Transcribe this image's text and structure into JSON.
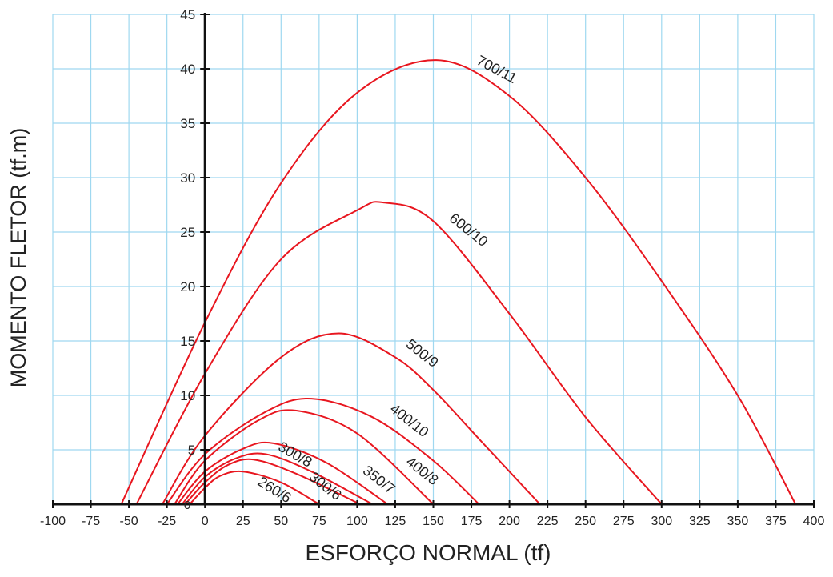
{
  "chart_data": {
    "type": "line",
    "title": "",
    "xlabel": "ESFORÇO NORMAL (tf)",
    "ylabel": "MOMENTO FLETOR (tf.m)",
    "xlim": [
      -100,
      400
    ],
    "ylim": [
      0,
      45
    ],
    "x_ticks": [
      -100,
      -75,
      -50,
      -25,
      0,
      25,
      50,
      75,
      100,
      125,
      150,
      175,
      200,
      225,
      250,
      275,
      300,
      325,
      350,
      375,
      400
    ],
    "y_ticks": [
      5,
      10,
      15,
      20,
      25,
      30,
      35,
      40,
      45
    ],
    "y_zero_label": "0",
    "grid": true,
    "grid_color": "#9fd8f0",
    "line_color": "#e8161f",
    "axis_color": "#111111",
    "series": [
      {
        "name": "700/11",
        "x": [
          -55,
          0,
          50,
          100,
          152,
          200,
          250,
          300,
          350,
          388
        ],
        "y": [
          0,
          16.7,
          29.5,
          37.8,
          40.8,
          37.5,
          30.0,
          20.5,
          10.0,
          0
        ]
      },
      {
        "name": "600/10",
        "x": [
          -45,
          0,
          50,
          100,
          118,
          150,
          200,
          250,
          300
        ],
        "y": [
          0,
          12.0,
          22.5,
          27.0,
          27.7,
          26.0,
          17.5,
          8.0,
          0
        ]
      },
      {
        "name": "500/9",
        "x": [
          -28,
          0,
          50,
          88,
          125,
          150,
          180,
          220
        ],
        "y": [
          0,
          6.3,
          13.5,
          15.7,
          13.5,
          10.5,
          6.0,
          0
        ]
      },
      {
        "name": "400/10",
        "x": [
          -25,
          0,
          40,
          70,
          110,
          150,
          180
        ],
        "y": [
          0,
          4.6,
          8.5,
          9.7,
          8.0,
          4.0,
          0
        ]
      },
      {
        "name": "400/8",
        "x": [
          -20,
          0,
          35,
          60,
          100,
          150
        ],
        "y": [
          0,
          4.0,
          7.7,
          8.6,
          6.5,
          0
        ]
      },
      {
        "name": "350/7",
        "x": [
          -18,
          0,
          25,
          45,
          80,
          120
        ],
        "y": [
          0,
          3.0,
          5.1,
          5.6,
          3.8,
          0
        ]
      },
      {
        "name": "300/8",
        "x": [
          -15,
          0,
          20,
          40,
          70,
          110
        ],
        "y": [
          0,
          2.5,
          4.2,
          4.6,
          3.0,
          0
        ]
      },
      {
        "name": "300/6",
        "x": [
          -13,
          0,
          15,
          32,
          60,
          102
        ],
        "y": [
          0,
          2.0,
          3.6,
          4.1,
          2.8,
          0
        ]
      },
      {
        "name": "260/6",
        "x": [
          -10,
          0,
          10,
          25,
          50,
          75
        ],
        "y": [
          0,
          1.5,
          2.6,
          3.0,
          2.0,
          0
        ]
      }
    ]
  }
}
